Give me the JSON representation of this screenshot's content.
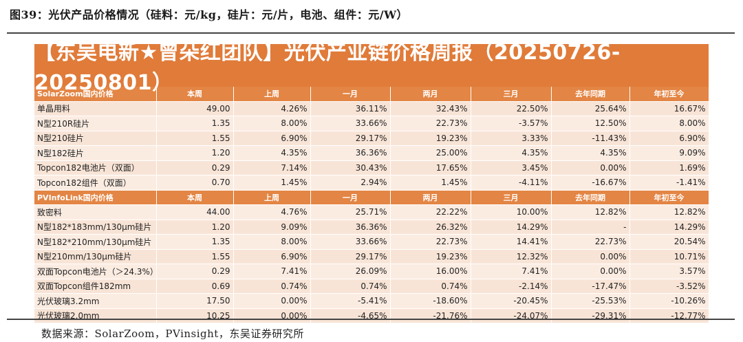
{
  "figure_title": "图39：光伏产品价格情况（硅料：元/kg，硅片：元/片，电池、组件：元/W）",
  "banner_title": "【东吴电新★曾朵红团队】光伏产业链价格周报（20250726-20250801）",
  "sections": [
    {
      "header": [
        "SolarZoom国内价格",
        "本周",
        "上周",
        "一月",
        "两月",
        "三月",
        "去年同期",
        "年初至今"
      ],
      "rows": [
        [
          "单晶用料",
          "49.00",
          "4.26%",
          "36.11%",
          "32.43%",
          "22.50%",
          "25.64%",
          "16.67%"
        ],
        [
          "N型210R硅片",
          "1.35",
          "8.00%",
          "33.66%",
          "22.73%",
          "-3.57%",
          "12.50%",
          "8.00%"
        ],
        [
          "N型210硅片",
          "1.55",
          "6.90%",
          "29.17%",
          "19.23%",
          "3.33%",
          "-11.43%",
          "6.90%"
        ],
        [
          "N型182硅片",
          "1.20",
          "4.35%",
          "36.36%",
          "25.00%",
          "4.35%",
          "4.35%",
          "9.09%"
        ],
        [
          "Topcon182电池片（双面）",
          "0.29",
          "7.14%",
          "30.43%",
          "17.65%",
          "3.45%",
          "0.00%",
          "1.69%"
        ],
        [
          "Topcon182组件（双面）",
          "0.70",
          "1.45%",
          "2.94%",
          "1.45%",
          "-4.11%",
          "-16.67%",
          "-1.41%"
        ]
      ]
    },
    {
      "header": [
        "PVInfoLink国内价格",
        "本周",
        "上周",
        "一月",
        "两月",
        "三月",
        "去年同期",
        "年初至今"
      ],
      "rows": [
        [
          "致密料",
          "44.00",
          "4.76%",
          "25.71%",
          "22.22%",
          "10.00%",
          "12.82%",
          "12.82%"
        ],
        [
          "N型182*183mm/130μm硅片",
          "1.20",
          "9.09%",
          "36.36%",
          "26.32%",
          "14.29%",
          "-",
          "14.29%"
        ],
        [
          "N型182*210mm/130μm硅片",
          "1.35",
          "8.00%",
          "33.66%",
          "22.73%",
          "14.41%",
          "22.73%",
          "20.54%"
        ],
        [
          "N型210mm/130μm硅片",
          "1.55",
          "6.90%",
          "29.17%",
          "19.23%",
          "12.32%",
          "0.00%",
          "10.71%"
        ],
        [
          "双面Topcon电池片（＞24.3%）",
          "0.29",
          "7.41%",
          "26.09%",
          "16.00%",
          "7.41%",
          "0.00%",
          "3.57%"
        ],
        [
          "双面Topcon组件182mm",
          "0.69",
          "0.74%",
          "0.74%",
          "0.74%",
          "-2.14%",
          "-17.47%",
          "-3.52%"
        ],
        [
          "光伏玻璃3.2mm",
          "17.50",
          "0.00%",
          "-5.41%",
          "-18.60%",
          "-20.45%",
          "-25.53%",
          "-10.26%"
        ],
        [
          "光伏玻璃2.0mm",
          "10.25",
          "0.00%",
          "-4.65%",
          "-21.76%",
          "-24.07%",
          "-29.31%",
          "-12.77%"
        ]
      ]
    }
  ],
  "source": "数据来源：SolarZoom，PVinsight，东吴证券研究所"
}
